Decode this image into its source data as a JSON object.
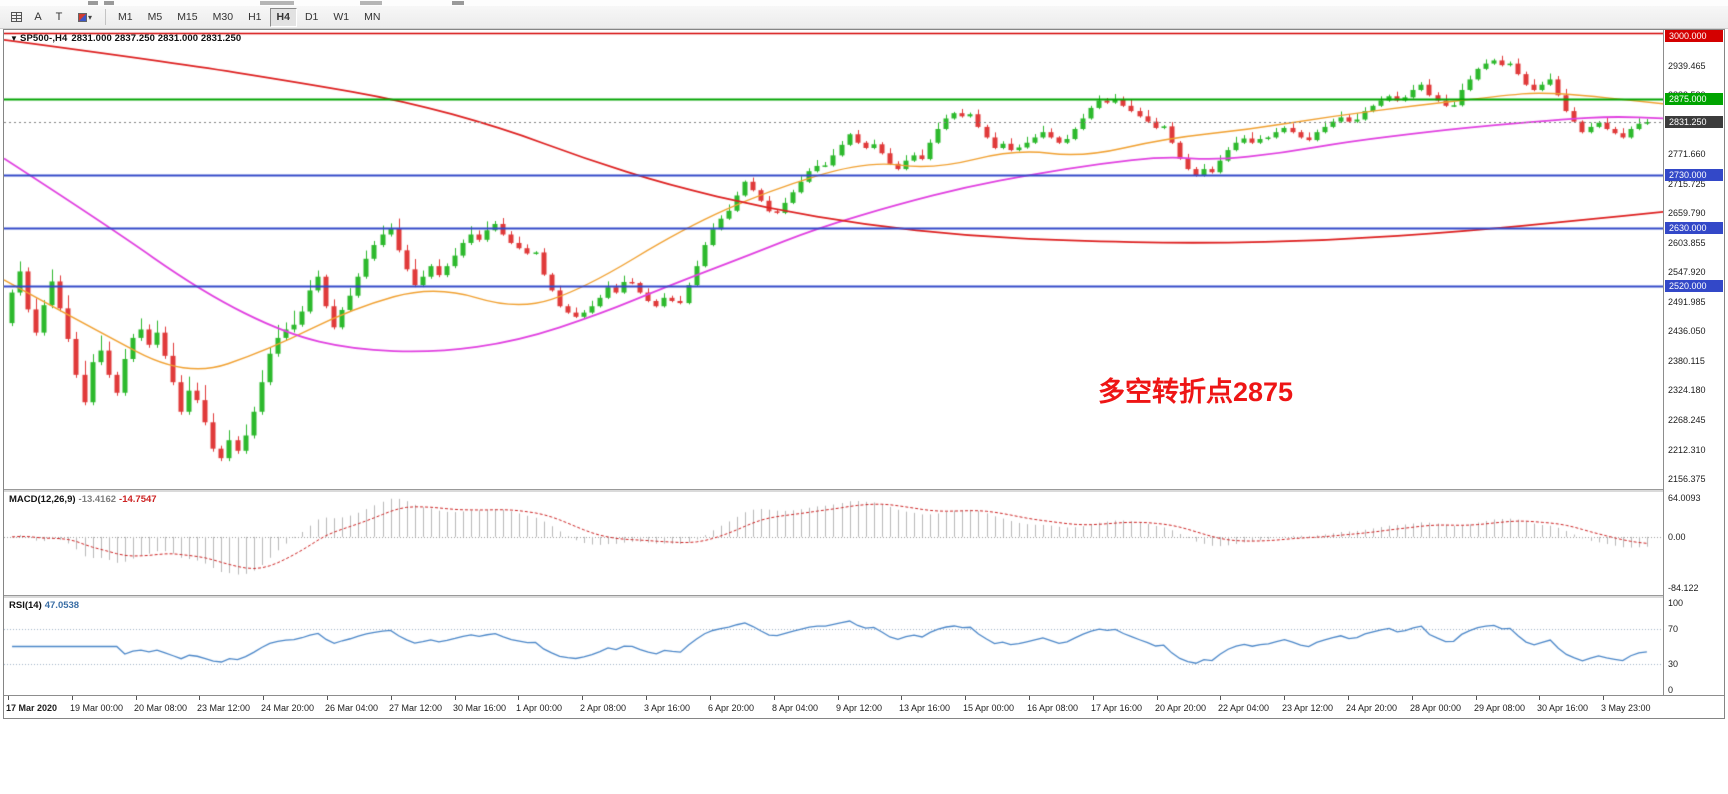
{
  "toolbar": {
    "tool_a": "A",
    "tool_t": "T",
    "timeframes": [
      "M1",
      "M5",
      "M15",
      "M30",
      "H1",
      "H4",
      "D1",
      "W1",
      "MN"
    ],
    "active_timeframe": "H4"
  },
  "chart": {
    "collapse_arrow": "▼",
    "title_symbol": "SP500-,H4",
    "title_ohlc": "2831.000 2837.250 2831.000 2831.250",
    "annotation": {
      "text": "多空转折点2875",
      "color": "#ee1515"
    },
    "current_price": {
      "value": 2831.25,
      "label": "2831.250",
      "badge_bg": "#3c3c3c"
    },
    "levels": [
      {
        "value": 3000.0,
        "label": "3000.000",
        "color": "#d40000",
        "width": 1.5
      },
      {
        "value": 2875.0,
        "label": "2875.000",
        "color": "#00a400",
        "width": 2
      },
      {
        "value": 2730.0,
        "label": "2730.000",
        "color": "#3348c8",
        "width": 2
      },
      {
        "value": 2630.0,
        "label": "2630.000",
        "color": "#3348c8",
        "width": 2
      },
      {
        "value": 2520.0,
        "label": "2520.000",
        "color": "#3348c8",
        "width": 2
      }
    ],
    "price_ticks": [
      "2939.465",
      "2883.530",
      "2827.595",
      "2771.660",
      "2715.725",
      "2659.790",
      "2603.855",
      "2547.920",
      "2491.985",
      "2436.050",
      "2380.115",
      "2324.180",
      "2268.245",
      "2212.310",
      "2156.375"
    ]
  },
  "macd": {
    "label": "MACD(12,26,9)",
    "main_value": "-13.4162",
    "signal_value": "-14.7547",
    "axis_max": "64.0093",
    "axis_zero": "0.00",
    "axis_min": "-84.122",
    "histogram_color": "#b8b8b8",
    "signal_color": "#cc2222"
  },
  "rsi": {
    "label": "RSI(14)",
    "value": "47.0538",
    "axis_max": "100",
    "axis_upper": "70",
    "axis_lower": "30",
    "axis_min": "0",
    "guide_levels": [
      70,
      30
    ],
    "line_color": "#4a86c8"
  },
  "chart_data": {
    "type": "candlestick",
    "symbol": "SP500-",
    "timeframe": "H4",
    "up_color": "#2db92d",
    "down_color": "#e03a3a",
    "first_open": 2450,
    "closes": [
      2508,
      2548,
      2476,
      2432,
      2484,
      2529,
      2478,
      2420,
      2352,
      2300,
      2376,
      2398,
      2352,
      2318,
      2382,
      2422,
      2438,
      2409,
      2432,
      2388,
      2338,
      2282,
      2322,
      2304,
      2262,
      2212,
      2194,
      2228,
      2208,
      2237,
      2282,
      2338,
      2392,
      2422,
      2438,
      2447,
      2472,
      2512,
      2538,
      2482,
      2442,
      2475,
      2502,
      2538,
      2572,
      2598,
      2618,
      2630,
      2588,
      2552,
      2522,
      2538,
      2558,
      2541,
      2558,
      2578,
      2602,
      2618,
      2608,
      2626,
      2638,
      2618,
      2602,
      2592,
      2582,
      2584,
      2542,
      2512,
      2482,
      2470,
      2462,
      2470,
      2482,
      2498,
      2518,
      2508,
      2528,
      2526,
      2508,
      2492,
      2482,
      2498,
      2492,
      2488,
      2522,
      2558,
      2598,
      2628,
      2648,
      2663,
      2692,
      2718,
      2702,
      2682,
      2662,
      2659,
      2678,
      2698,
      2718,
      2738,
      2748,
      2749,
      2768,
      2788,
      2808,
      2792,
      2782,
      2789,
      2772,
      2752,
      2742,
      2758,
      2768,
      2761,
      2792,
      2818,
      2838,
      2848,
      2842,
      2846,
      2822,
      2802,
      2782,
      2790,
      2778,
      2783,
      2792,
      2802,
      2812,
      2802,
      2792,
      2799,
      2818,
      2838,
      2858,
      2872,
      2868,
      2874,
      2862,
      2852,
      2842,
      2832,
      2820,
      2823,
      2792,
      2762,
      2742,
      2730,
      2742,
      2736,
      2758,
      2778,
      2792,
      2800,
      2792,
      2799,
      2802,
      2812,
      2820,
      2812,
      2802,
      2797,
      2812,
      2822,
      2832,
      2840,
      2832,
      2836,
      2852,
      2862,
      2872,
      2880,
      2872,
      2878,
      2892,
      2902,
      2882,
      2872,
      2862,
      2863,
      2892,
      2912,
      2932,
      2942,
      2948,
      2939,
      2942,
      2922,
      2902,
      2892,
      2902,
      2912,
      2882,
      2852,
      2832,
      2812,
      2822,
      2830,
      2818,
      2810,
      2802,
      2818,
      2828,
      2831.25
    ],
    "ma_red": {
      "color": "#dd2020",
      "points": [
        [
          0,
          2987
        ],
        [
          0.1,
          2945
        ],
        [
          0.18,
          2905
        ],
        [
          0.24,
          2872
        ],
        [
          0.3,
          2820
        ],
        [
          0.35,
          2762
        ],
        [
          0.4,
          2712
        ],
        [
          0.46,
          2668
        ],
        [
          0.52,
          2636
        ],
        [
          0.58,
          2616
        ],
        [
          0.64,
          2606
        ],
        [
          0.72,
          2601
        ],
        [
          0.8,
          2607
        ],
        [
          0.88,
          2624
        ],
        [
          0.95,
          2645
        ],
        [
          1,
          2661
        ]
      ]
    },
    "ma_magenta": {
      "color": "#e040e0",
      "points": [
        [
          0,
          2762
        ],
        [
          0.06,
          2640
        ],
        [
          0.12,
          2508
        ],
        [
          0.17,
          2430
        ],
        [
          0.21,
          2400
        ],
        [
          0.26,
          2394
        ],
        [
          0.31,
          2416
        ],
        [
          0.36,
          2468
        ],
        [
          0.4,
          2520
        ],
        [
          0.45,
          2580
        ],
        [
          0.49,
          2630
        ],
        [
          0.54,
          2676
        ],
        [
          0.58,
          2708
        ],
        [
          0.62,
          2732
        ],
        [
          0.66,
          2752
        ],
        [
          0.7,
          2766
        ],
        [
          0.73,
          2759
        ],
        [
          0.77,
          2772
        ],
        [
          0.81,
          2794
        ],
        [
          0.86,
          2813
        ],
        [
          0.9,
          2826
        ],
        [
          0.94,
          2836
        ],
        [
          0.97,
          2842
        ],
        [
          1,
          2838
        ]
      ]
    },
    "ma_orange": {
      "color": "#f0a030",
      "points": [
        [
          0,
          2532
        ],
        [
          0.05,
          2446
        ],
        [
          0.11,
          2346
        ],
        [
          0.16,
          2400
        ],
        [
          0.21,
          2478
        ],
        [
          0.26,
          2522
        ],
        [
          0.31,
          2474
        ],
        [
          0.35,
          2516
        ],
        [
          0.41,
          2630
        ],
        [
          0.46,
          2700
        ],
        [
          0.52,
          2758
        ],
        [
          0.56,
          2741
        ],
        [
          0.61,
          2780
        ],
        [
          0.65,
          2764
        ],
        [
          0.7,
          2800
        ],
        [
          0.75,
          2817
        ],
        [
          0.8,
          2842
        ],
        [
          0.85,
          2862
        ],
        [
          0.9,
          2880
        ],
        [
          0.93,
          2889
        ],
        [
          1,
          2866
        ]
      ]
    },
    "time_labels": [
      "17 Mar 2020",
      "19 Mar 00:00",
      "20 Mar 08:00",
      "23 Mar 12:00",
      "24 Mar 20:00",
      "26 Mar 04:00",
      "27 Mar 12:00",
      "30 Mar 16:00",
      "1 Apr 00:00",
      "2 Apr 08:00",
      "3 Apr 16:00",
      "6 Apr 20:00",
      "8 Apr 04:00",
      "9 Apr 12:00",
      "13 Apr 16:00",
      "15 Apr 00:00",
      "16 Apr 08:00",
      "17 Apr 16:00",
      "20 Apr 20:00",
      "22 Apr 04:00",
      "23 Apr 12:00",
      "24 Apr 20:00",
      "28 Apr 00:00",
      "29 Apr 08:00",
      "30 Apr 16:00",
      "3 May 23:00"
    ]
  }
}
